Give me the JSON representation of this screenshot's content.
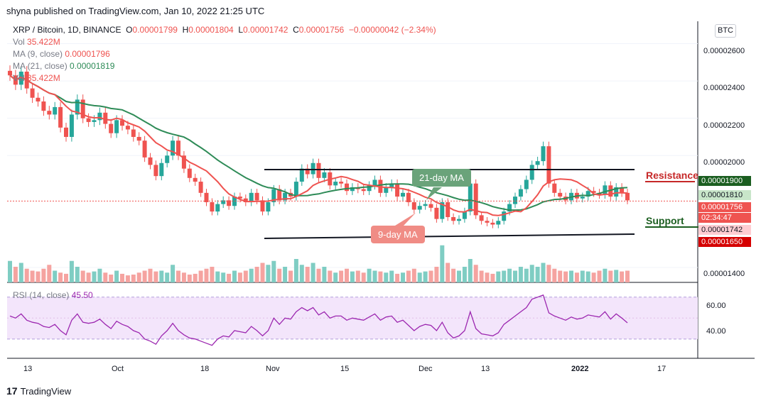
{
  "publisher_line": "shyna published on TradingView.com, Jan 10, 2022 21:25 UTC",
  "legend": {
    "symbol": "XRP / Bitcoin, 1D, BINANCE",
    "o_label": "O",
    "o_value": "0.00001799",
    "h_label": "H",
    "h_value": "0.00001804",
    "l_label": "L",
    "l_value": "0.00001742",
    "c_label": "C",
    "c_value": "0.00001756",
    "change": "−0.00000042 (−2.34%)",
    "vol_label": "Vol",
    "vol_value": "35.422M",
    "ma9_label": "MA (9, close)",
    "ma9_value": "0.00001796",
    "ma21_label": "MA (21, close)",
    "ma21_value": "0.00001819",
    "vol2_label": "Vol",
    "vol2_value": "35.422M"
  },
  "currency_button": "BTC",
  "annotations": {
    "ma21_callout": "21-day MA",
    "ma9_callout": "9-day MA",
    "resistance": "Resistance",
    "support": "Support"
  },
  "price_badges": {
    "b1900": "0.00001900",
    "b1810": "0.00001810",
    "b1756": "0.00001756",
    "countdown": "02:34:47",
    "b1742": "0.00001742",
    "b1650": "0.00001650"
  },
  "rsi_label": "RSI (14, close)",
  "rsi_value": "45.50",
  "footer_brand": "TradingView",
  "colors": {
    "up": "#26a69a",
    "down": "#ef5350",
    "ma9": "#ef5350",
    "ma21": "#2e8b57",
    "rsi_line": "#9c27b0",
    "rsi_band": "#f3e5fb",
    "trendline": "#131722"
  },
  "chart_data": {
    "type": "candlestick",
    "title": "XRP / Bitcoin, 1D, BINANCE",
    "y_axis": {
      "ticks": [
        "0.00002600",
        "0.00002400",
        "0.00002200",
        "0.00002000",
        "0.00001400"
      ],
      "ylim": [
        1.32e-05,
        2.72e-05
      ]
    },
    "x_axis": {
      "ticks": [
        "13",
        "Oct",
        "18",
        "Nov",
        "15",
        "Dec",
        "13",
        "2022",
        "17"
      ]
    },
    "ohlc_close_last": {
      "open": 1.799e-05,
      "high": 1.804e-05,
      "low": 1.742e-05,
      "close": 1.756e-05
    },
    "support_channel": {
      "upper_level": 1.96e-05,
      "lower_level": 1.6e-05,
      "label_upper": "Resistance",
      "label_lower": "Support"
    },
    "ma9_last": 1.796e-05,
    "ma21_last": 1.819e-05,
    "volume_last": "35.422M",
    "rsi": {
      "period": 14,
      "last": 45.5,
      "levels": [
        60,
        40
      ],
      "ticks": [
        "60.00",
        "40.00"
      ]
    },
    "closes": [
      2.43e-05,
      2.38e-05,
      2.45e-05,
      2.36e-05,
      2.31e-05,
      2.29e-05,
      2.24e-05,
      2.22e-05,
      2.26e-05,
      2.15e-05,
      2.1e-05,
      2.22e-05,
      2.3e-05,
      2.2e-05,
      2.18e-05,
      2.19e-05,
      2.23e-05,
      2.17e-05,
      2.12e-05,
      2.19e-05,
      2.16e-05,
      2.14e-05,
      2.1e-05,
      2.08e-05,
      1.99e-05,
      1.95e-05,
      1.89e-05,
      1.96e-05,
      2e-05,
      2.08e-05,
      2e-05,
      1.93e-05,
      1.88e-05,
      1.86e-05,
      1.8e-05,
      1.75e-05,
      1.7e-05,
      1.74e-05,
      1.76e-05,
      1.73e-05,
      1.78e-05,
      1.77e-05,
      1.75e-05,
      1.8e-05,
      1.76e-05,
      1.7e-05,
      1.75e-05,
      1.82e-05,
      1.76e-05,
      1.8e-05,
      1.78e-05,
      1.86e-05,
      1.93e-05,
      1.9e-05,
      1.96e-05,
      1.88e-05,
      1.91e-05,
      1.84e-05,
      1.86e-05,
      1.85e-05,
      1.81e-05,
      1.83e-05,
      1.82e-05,
      1.81e-05,
      1.84e-05,
      1.87e-05,
      1.8e-05,
      1.83e-05,
      1.85e-05,
      1.78e-05,
      1.8e-05,
      1.75e-05,
      1.71e-05,
      1.73e-05,
      1.74e-05,
      1.72e-05,
      1.66e-05,
      1.75e-05,
      1.67e-05,
      1.65e-05,
      1.66e-05,
      1.7e-05,
      1.85e-05,
      1.68e-05,
      1.65e-05,
      1.64e-05,
      1.63e-05,
      1.65e-05,
      1.7e-05,
      1.74e-05,
      1.78e-05,
      1.82e-05,
      1.87e-05,
      1.95e-05,
      1.97e-05,
      2.05e-05,
      1.85e-05,
      1.8e-05,
      1.78e-05,
      1.76e-05,
      1.8e-05,
      1.77e-05,
      1.78e-05,
      1.81e-05,
      1.8e-05,
      1.79e-05,
      1.84e-05,
      1.78e-05,
      1.83e-05,
      1.8e-05,
      1.76e-05
    ],
    "volumes": [
      0.55,
      0.4,
      0.5,
      0.35,
      0.3,
      0.28,
      0.35,
      0.45,
      0.3,
      0.25,
      0.22,
      0.55,
      0.4,
      0.3,
      0.25,
      0.28,
      0.35,
      0.25,
      0.2,
      0.3,
      0.22,
      0.18,
      0.2,
      0.25,
      0.3,
      0.35,
      0.28,
      0.3,
      0.25,
      0.45,
      0.3,
      0.25,
      0.2,
      0.22,
      0.3,
      0.35,
      0.4,
      0.28,
      0.25,
      0.22,
      0.3,
      0.25,
      0.3,
      0.35,
      0.4,
      0.5,
      0.45,
      0.55,
      0.35,
      0.4,
      0.3,
      0.6,
      0.45,
      0.4,
      0.5,
      0.35,
      0.4,
      0.3,
      0.25,
      0.3,
      0.35,
      0.28,
      0.3,
      0.25,
      0.35,
      0.3,
      0.28,
      0.25,
      0.3,
      0.22,
      0.25,
      0.3,
      0.35,
      0.25,
      0.28,
      0.3,
      0.4,
      0.95,
      0.5,
      0.35,
      0.3,
      0.4,
      0.6,
      0.45,
      0.3,
      0.25,
      0.22,
      0.28,
      0.3,
      0.35,
      0.3,
      0.4,
      0.35,
      0.45,
      0.4,
      0.5,
      0.45,
      0.35,
      0.3,
      0.28,
      0.3,
      0.25,
      0.3,
      0.28,
      0.25,
      0.3,
      0.35,
      0.3,
      0.32,
      0.28,
      0.3
    ],
    "rsi_values": [
      52,
      50,
      54,
      48,
      46,
      45,
      42,
      41,
      44,
      38,
      34,
      48,
      54,
      46,
      45,
      46,
      49,
      44,
      40,
      47,
      44,
      42,
      38,
      36,
      30,
      28,
      25,
      33,
      38,
      45,
      38,
      34,
      31,
      30,
      28,
      26,
      24,
      30,
      33,
      32,
      38,
      37,
      36,
      42,
      38,
      33,
      38,
      50,
      44,
      50,
      49,
      56,
      60,
      57,
      60,
      53,
      56,
      50,
      52,
      52,
      48,
      50,
      49,
      48,
      51,
      54,
      48,
      51,
      52,
      46,
      48,
      43,
      38,
      42,
      44,
      43,
      38,
      46,
      36,
      31,
      33,
      38,
      56,
      40,
      35,
      34,
      33,
      36,
      44,
      48,
      52,
      56,
      60,
      68,
      70,
      72,
      55,
      52,
      50,
      48,
      51,
      49,
      50,
      53,
      52,
      51,
      56,
      49,
      54,
      50,
      45.5
    ]
  }
}
